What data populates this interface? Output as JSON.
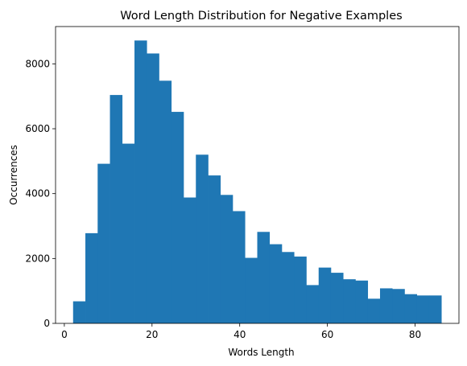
{
  "chart_data": {
    "type": "bar",
    "title": "Word Length Distribution for Negative Examples",
    "xlabel": "Words Length",
    "ylabel": "Occurrences",
    "bin_edges": [
      2,
      4.8,
      7.6,
      10.4,
      13.2,
      16,
      18.8,
      21.6,
      24.4,
      27.2,
      30,
      32.8,
      35.6,
      38.4,
      41.2,
      44,
      46.8,
      49.6,
      52.4,
      55.2,
      58,
      60.8,
      63.6,
      66.4,
      69.2,
      72,
      74.8,
      77.6,
      80.4,
      83.2,
      86
    ],
    "values": [
      680,
      2780,
      4920,
      7040,
      5540,
      8720,
      8320,
      7480,
      6520,
      3880,
      5200,
      4560,
      3960,
      3460,
      2020,
      2820,
      2440,
      2200,
      2060,
      1180,
      1720,
      1560,
      1360,
      1320,
      760,
      1080,
      1060,
      900,
      860,
      860
    ],
    "xlim": [
      -2,
      90
    ],
    "ylim": [
      0,
      9150
    ],
    "xticks": [
      0,
      20,
      40,
      60,
      80
    ],
    "yticks": [
      0,
      2000,
      4000,
      6000,
      8000
    ],
    "grid": false,
    "bar_color": "#1f77b4"
  }
}
